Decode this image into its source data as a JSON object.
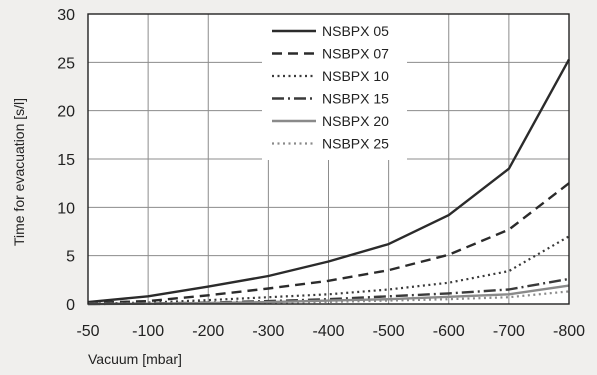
{
  "chart_data": {
    "type": "line",
    "xlabel": "Vacuum [mbar]",
    "ylabel": "Time for evacuation [s/l]",
    "x_ticks": [
      "-50",
      "-100",
      "-200",
      "-300",
      "-400",
      "-500",
      "-600",
      "-700",
      "-800"
    ],
    "y_ticks": [
      "0",
      "5",
      "10",
      "15",
      "20",
      "25",
      "30"
    ],
    "ylim": [
      0,
      30
    ],
    "grid": true,
    "legend_position": "top-right",
    "x": [
      -50,
      -100,
      -200,
      -300,
      -400,
      -500,
      -600,
      -700,
      -800
    ],
    "series": [
      {
        "name": "NSBPX 05",
        "values": [
          0.2,
          0.8,
          1.8,
          2.9,
          4.4,
          6.2,
          9.2,
          14.0,
          25.3
        ],
        "color": "#2b2b2b",
        "dash": "solid",
        "width": 2.4
      },
      {
        "name": "NSBPX 07",
        "values": [
          0.1,
          0.3,
          0.9,
          1.6,
          2.4,
          3.5,
          5.1,
          7.7,
          12.5
        ],
        "color": "#2b2b2b",
        "dash": "dashed",
        "width": 2.4
      },
      {
        "name": "NSBPX 10",
        "values": [
          0.05,
          0.15,
          0.4,
          0.7,
          1.0,
          1.5,
          2.2,
          3.4,
          7.0
        ],
        "color": "#3a3a3a",
        "dash": "dotted",
        "width": 2.2
      },
      {
        "name": "NSBPX 15",
        "values": [
          0.0,
          0.05,
          0.15,
          0.3,
          0.5,
          0.8,
          1.1,
          1.5,
          2.6
        ],
        "color": "#3a3a3a",
        "dash": "dashdot",
        "width": 2.4
      },
      {
        "name": "NSBPX 20",
        "values": [
          0.0,
          0.03,
          0.1,
          0.2,
          0.35,
          0.5,
          0.75,
          1.0,
          1.9
        ],
        "color": "#8a8a8a",
        "dash": "solid",
        "width": 2.4
      },
      {
        "name": "NSBPX 25",
        "values": [
          0.0,
          0.02,
          0.07,
          0.13,
          0.22,
          0.35,
          0.5,
          0.7,
          1.3
        ],
        "color": "#8a8a8a",
        "dash": "dotted",
        "width": 2.2
      }
    ]
  }
}
